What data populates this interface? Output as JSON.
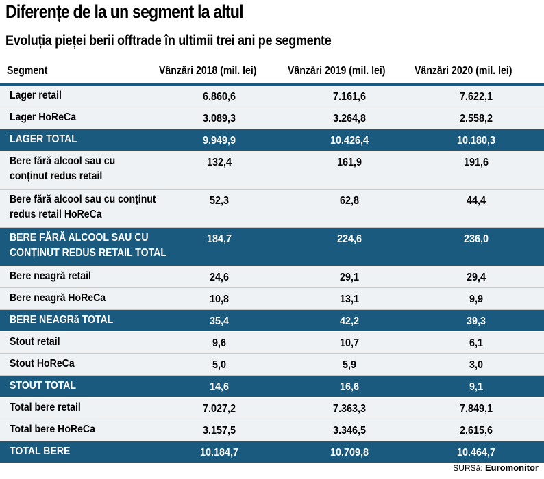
{
  "title": "Diferențe de la un segment la altul",
  "subtitle": "Evoluția pieței berii offtrade în ultimii trei ani pe segmente",
  "source_label": "SURSă:",
  "source_name": "Euromonitor",
  "chart_data": {
    "type": "table",
    "columns": [
      "Segment",
      "Vânzări 2018 (mil. lei)",
      "Vânzări 2019 (mil. lei)",
      "Vânzări 2020 (mil. lei)"
    ],
    "rows": [
      {
        "segment": "Lager retail",
        "v2018": "6.860,6",
        "v2019": "7.161,6",
        "v2020": "7.622,1",
        "total": false
      },
      {
        "segment": "Lager HoReCa",
        "v2018": "3.089,3",
        "v2019": "3.264,8",
        "v2020": "2.558,2",
        "total": false
      },
      {
        "segment": "LAGER TOTAL",
        "v2018": "9.949,9",
        "v2019": "10.426,4",
        "v2020": "10.180,3",
        "total": true
      },
      {
        "segment": "Bere fără alcool sau cu\nconținut redus retail",
        "v2018": "132,4",
        "v2019": "161,9",
        "v2020": "191,6",
        "total": false
      },
      {
        "segment": "Bere fără alcool sau cu conținut\nredus retail HoReCa",
        "v2018": "52,3",
        "v2019": "62,8",
        "v2020": "44,4",
        "total": false
      },
      {
        "segment": "BERE FĂRĂ ALCOOL SAU CU\nCONȚINUT REDUS RETAIL TOTAL",
        "v2018": "184,7",
        "v2019": "224,6",
        "v2020": "236,0",
        "total": true
      },
      {
        "segment": "Bere neagră retail",
        "v2018": "24,6",
        "v2019": "29,1",
        "v2020": "29,4",
        "total": false
      },
      {
        "segment": "Bere neagră HoReCa",
        "v2018": "10,8",
        "v2019": "13,1",
        "v2020": "9,9",
        "total": false
      },
      {
        "segment": "BERE NEAGRă TOTAL",
        "v2018": "35,4",
        "v2019": "42,2",
        "v2020": "39,3",
        "total": true
      },
      {
        "segment": "Stout retail",
        "v2018": "9,6",
        "v2019": "10,7",
        "v2020": "6,1",
        "total": false
      },
      {
        "segment": "Stout HoReCa",
        "v2018": "5,0",
        "v2019": "5,9",
        "v2020": "3,0",
        "total": false
      },
      {
        "segment": "STOUT TOTAL",
        "v2018": "14,6",
        "v2019": "16,6",
        "v2020": "9,1",
        "total": true
      },
      {
        "segment": "Total bere retail",
        "v2018": "7.027,2",
        "v2019": "7.363,3",
        "v2020": "7.849,1",
        "total": false
      },
      {
        "segment": "Total bere HoReCa",
        "v2018": "3.157,5",
        "v2019": "3.346,5",
        "v2020": "2.615,6",
        "total": false
      },
      {
        "segment": "TOTAL BERE",
        "v2018": "10.184,7",
        "v2019": "10.709,8",
        "v2020": "10.464,7",
        "total": true
      }
    ]
  }
}
